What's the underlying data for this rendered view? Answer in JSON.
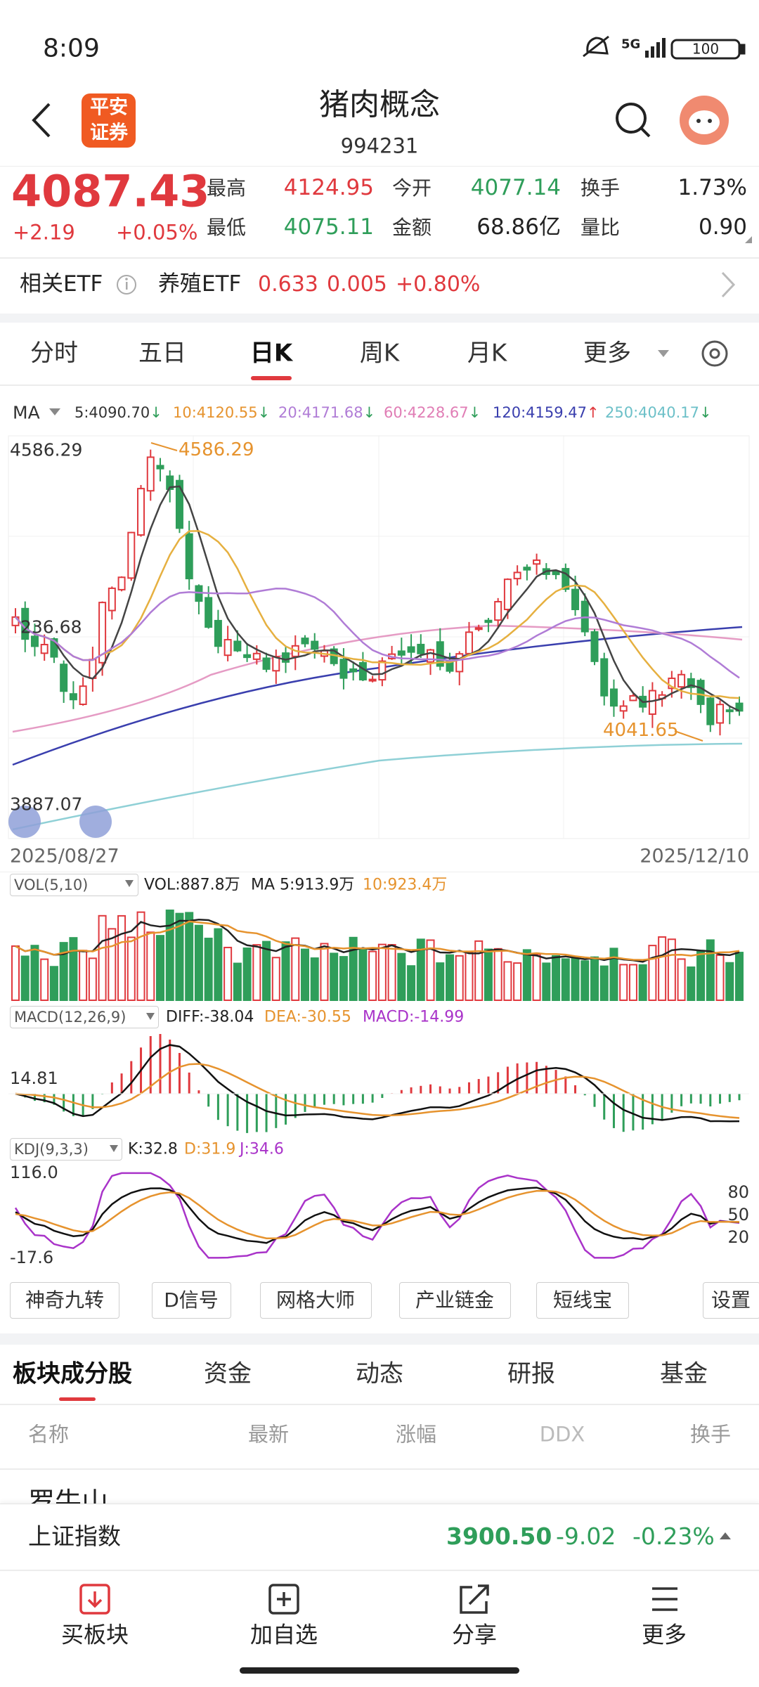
{
  "status_bar": {
    "time": "8:09",
    "network": "5G",
    "battery": "100"
  },
  "header": {
    "logo": [
      "平安",
      "证券"
    ],
    "title": "猪肉概念",
    "code": "994231"
  },
  "quote": {
    "price": "4087.43",
    "change": "+2.19",
    "change_pct": "+0.05%",
    "fields": [
      {
        "label": "最高",
        "value": "4124.95"
      },
      {
        "label": "今开",
        "value": "4077.14"
      },
      {
        "label": "换手",
        "value": "1.73%"
      },
      {
        "label": "最低",
        "value": "4075.11"
      },
      {
        "label": "金额",
        "value": "68.86亿"
      },
      {
        "label": "量比",
        "value": "0.90"
      }
    ]
  },
  "etf": {
    "label": "相关ETF",
    "name": "养殖ETF",
    "price": "0.633",
    "change": "0.005",
    "change_pct": "+0.80%"
  },
  "period_tabs": [
    "分时",
    "五日",
    "日K",
    "周K",
    "月K",
    "更多"
  ],
  "chart": {
    "ma_label": "MA",
    "ma_values": [
      {
        "value": "5:4090.70",
        "arrow": "↓"
      },
      {
        "value": "10:4120.55",
        "arrow": "↓"
      },
      {
        "value": "20:4171.68",
        "arrow": "↓"
      },
      {
        "value": "60:4228.67",
        "arrow": "↓"
      },
      {
        "value": "120:4159.47",
        "arrow": "↑"
      },
      {
        "value": "250:4040.17",
        "arrow": "↓"
      }
    ],
    "price_axis": [
      "4586.29",
      "236.68",
      "3887.07"
    ],
    "high_label": "4586.29",
    "low_label": "4041.65",
    "dates": [
      "2025/08/27",
      "2025/12/10"
    ]
  },
  "volume": {
    "indicator": "VOL(5,10)",
    "values": [
      "VOL:887.8万",
      "MA 5:913.9万",
      "10:923.4万"
    ]
  },
  "macd": {
    "indicator": "MACD(12,26,9)",
    "values": [
      "DIFF:-38.04",
      "DEA:-30.55",
      "MACD:-14.99"
    ],
    "axis_label": "14.81"
  },
  "kdj": {
    "indicator": "KDJ(9,3,3)",
    "values": [
      "K:32.8",
      "D:31.9",
      "J:34.6"
    ],
    "axis_labels": [
      "116.0",
      "-17.6"
    ],
    "levels": [
      "80",
      "50",
      "20"
    ]
  },
  "tools": [
    "神奇九转",
    "D信号",
    "网格大师",
    "产业链金",
    "短线宝",
    "设置"
  ],
  "section_tabs": [
    "板块成分股",
    "资金",
    "动态",
    "研报",
    "基金"
  ],
  "columns": [
    "名称",
    "最新",
    "涨幅",
    "DDX",
    "换手"
  ],
  "rows": [
    {
      "name": "罗牛山"
    }
  ],
  "index_bar": {
    "name": "上证指数",
    "price": "3900.50",
    "change": "-9.02",
    "change_pct": "-0.23%"
  },
  "bottom_nav": [
    "买板块",
    "加自选",
    "分享",
    "更多"
  ]
}
